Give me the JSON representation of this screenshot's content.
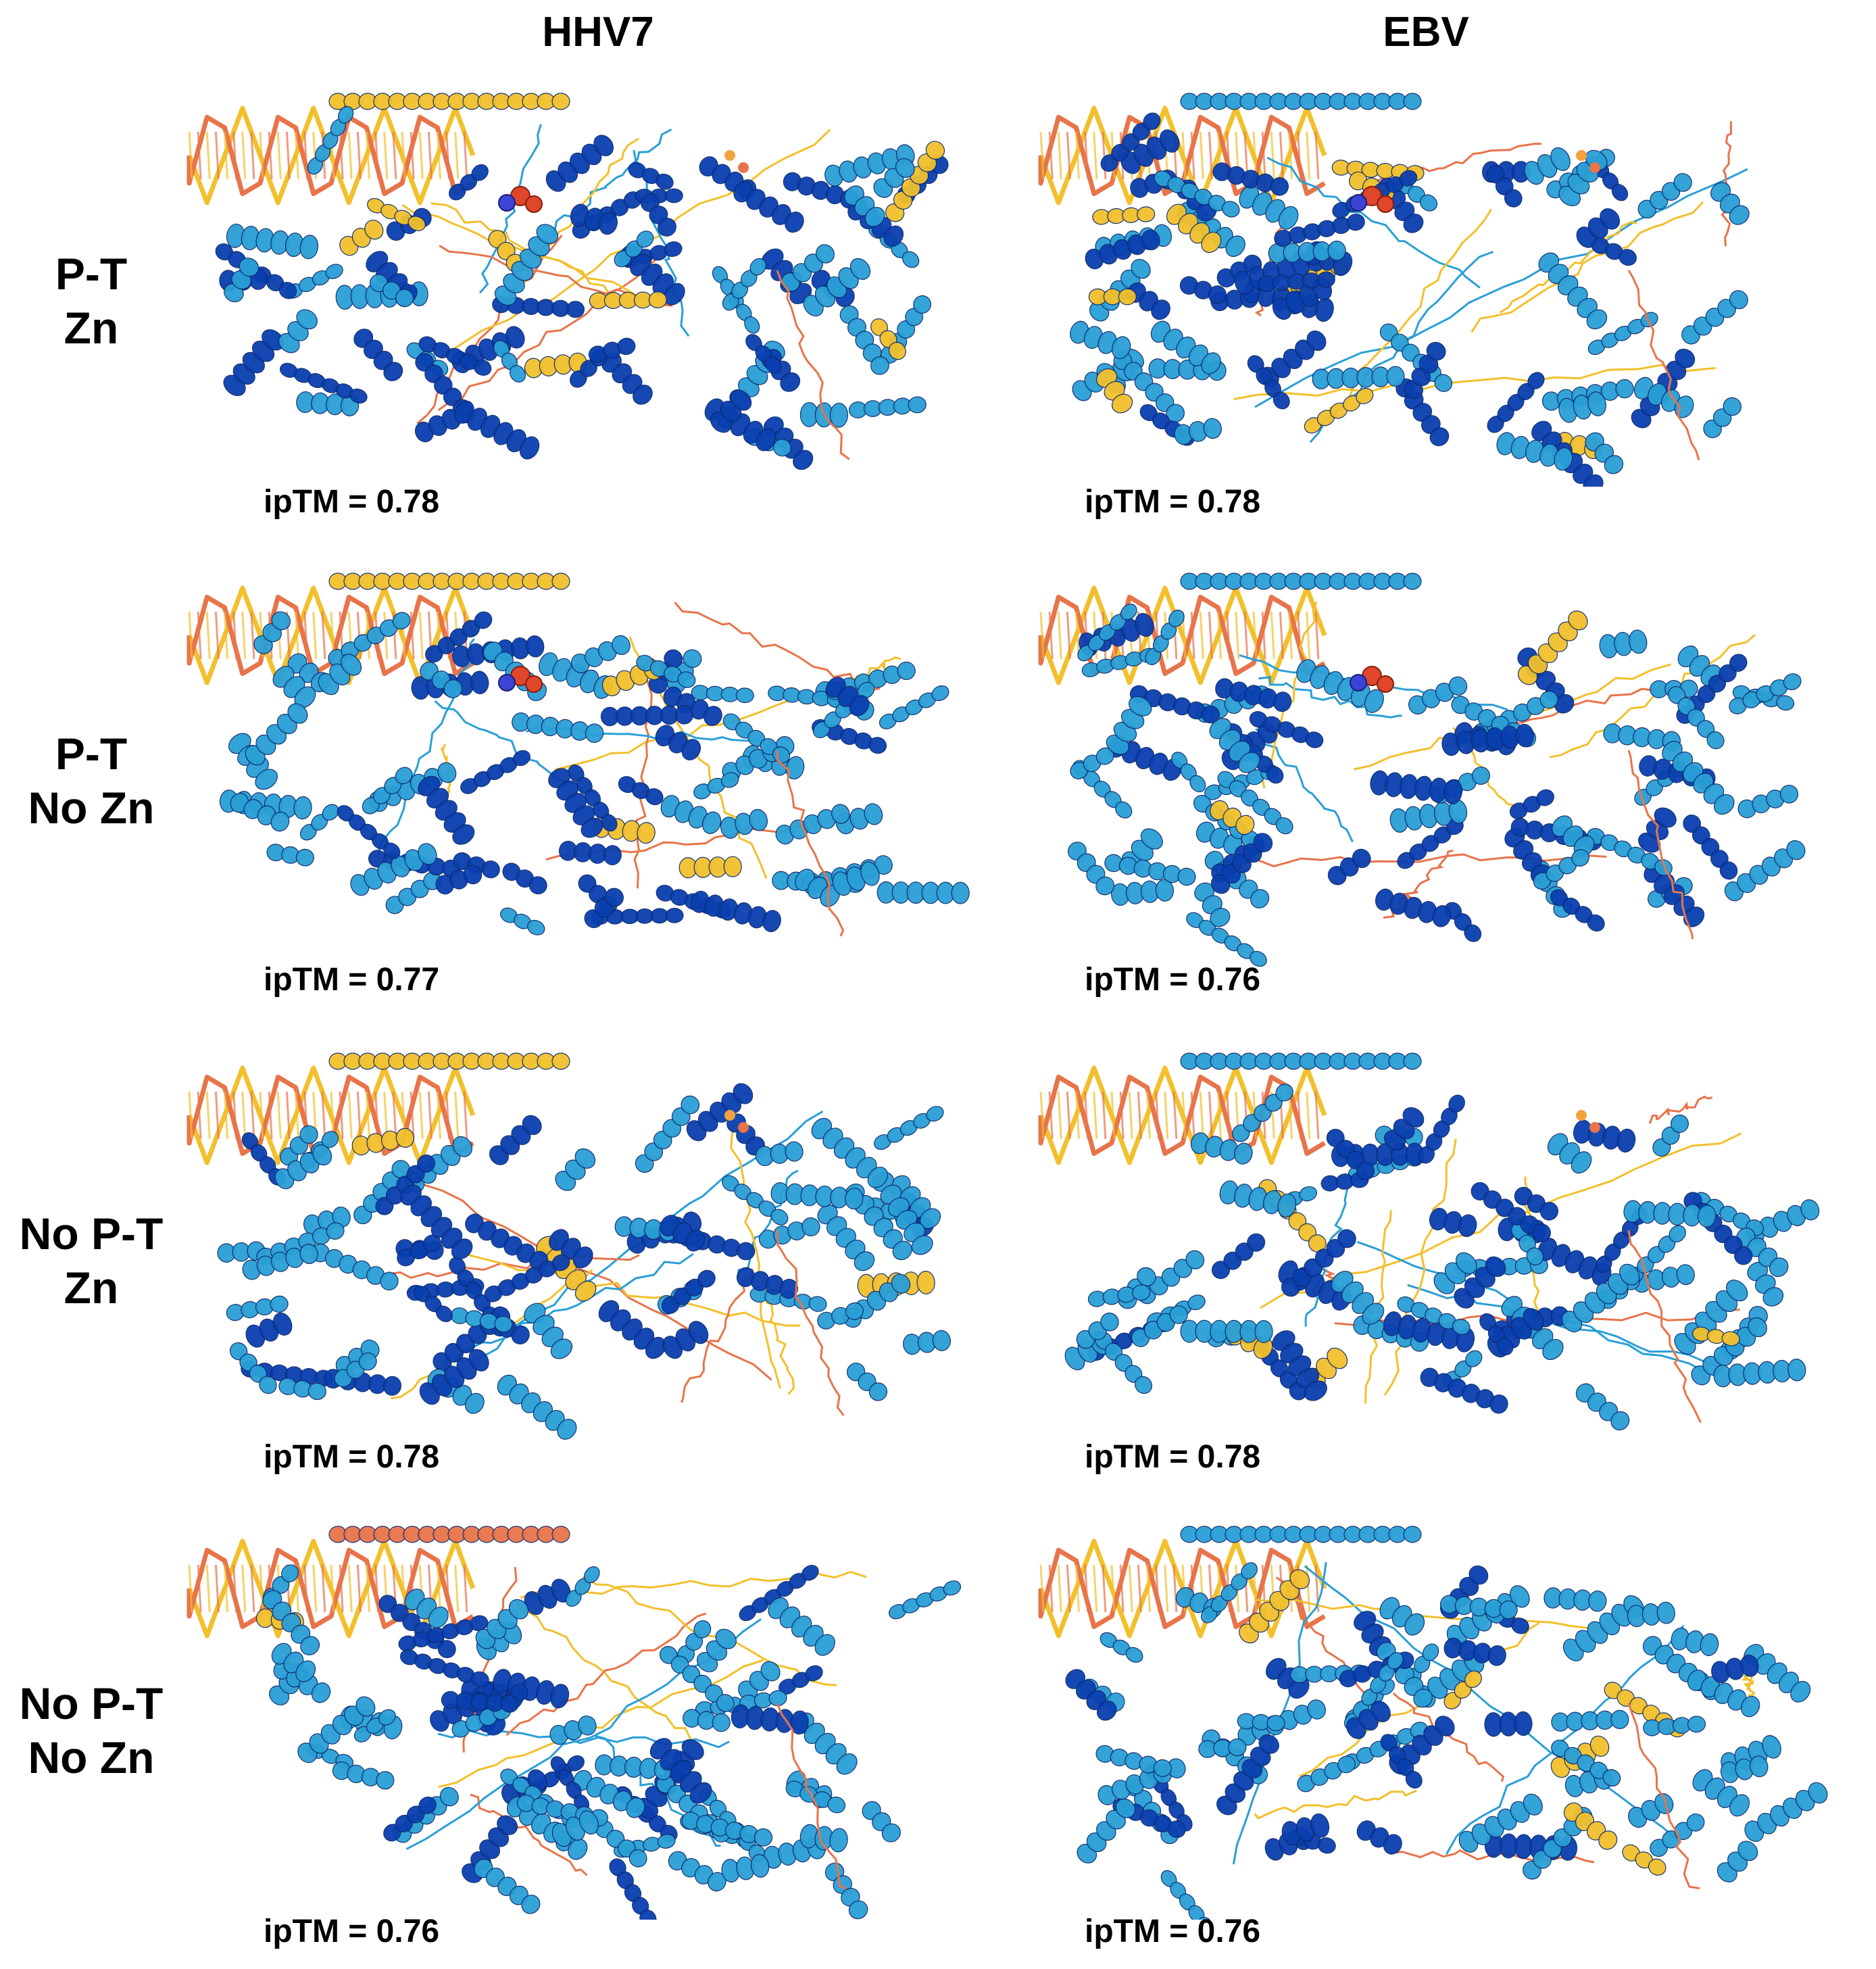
{
  "columns": [
    {
      "label": "HHV7"
    },
    {
      "label": "EBV"
    }
  ],
  "rows": [
    {
      "line1": "P-T",
      "line2": "Zn",
      "hhv7_iptm": "ipTM = 0.78",
      "ebv_iptm": "ipTM = 0.78"
    },
    {
      "line1": "P-T",
      "line2": "No Zn",
      "hhv7_iptm": "ipTM = 0.77",
      "ebv_iptm": "ipTM = 0.76"
    },
    {
      "line1": "No P-T",
      "line2": "Zn",
      "hhv7_iptm": "ipTM = 0.78",
      "ebv_iptm": "ipTM = 0.78"
    },
    {
      "line1": "No P-T",
      "line2": "No Zn",
      "hhv7_iptm": "ipTM = 0.76",
      "ebv_iptm": "ipTM = 0.76"
    }
  ],
  "palette": {
    "very_high": "#0a3fb0",
    "confident": "#2a9fd6",
    "low": "#f2c02d",
    "very_low": "#e8744a"
  }
}
